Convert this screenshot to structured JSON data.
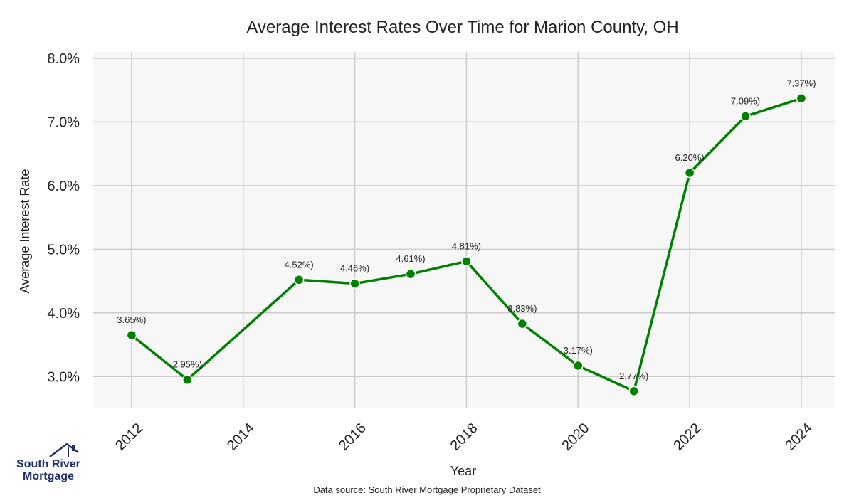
{
  "chart_data": {
    "type": "line",
    "title": "Average Interest Rates Over Time for Marion County, OH",
    "xlabel": "Year",
    "ylabel": "Average Interest Rate",
    "x": [
      2012,
      2013,
      2015,
      2016,
      2017,
      2018,
      2019,
      2020,
      2021,
      2022,
      2023,
      2024
    ],
    "series": [
      {
        "values": [
          3.65,
          2.95,
          4.52,
          4.46,
          4.61,
          4.81,
          3.83,
          3.17,
          2.77,
          6.2,
          7.09,
          7.37
        ]
      }
    ],
    "data_labels": [
      "3.65%)",
      "2.95%)",
      "4.52%)",
      "4.46%)",
      "4.61%)",
      "4.81%)",
      "3.83%)",
      "3.17%)",
      "2.77%)",
      "6.20%)",
      "7.09%)",
      "7.37%)"
    ],
    "x_ticks": [
      "2012",
      "2014",
      "2016",
      "2018",
      "2020",
      "2022",
      "2024"
    ],
    "y_ticks": [
      "3.0%",
      "4.0%",
      "5.0%",
      "6.0%",
      "7.0%",
      "8.0%"
    ],
    "xlim": [
      2011.3,
      2024.6
    ],
    "ylim": [
      2.5,
      8.1
    ],
    "grid": true,
    "line_color": "#008000",
    "plot_background": "#f7f7f7",
    "grid_color": "#cccccc"
  },
  "source_note": "Data source: South River Mortgage Proprietary Dataset",
  "logo": {
    "line1": "South River",
    "line2": "Mortgage",
    "icon": "house-roof-icon",
    "color": "#1f2f6b"
  }
}
